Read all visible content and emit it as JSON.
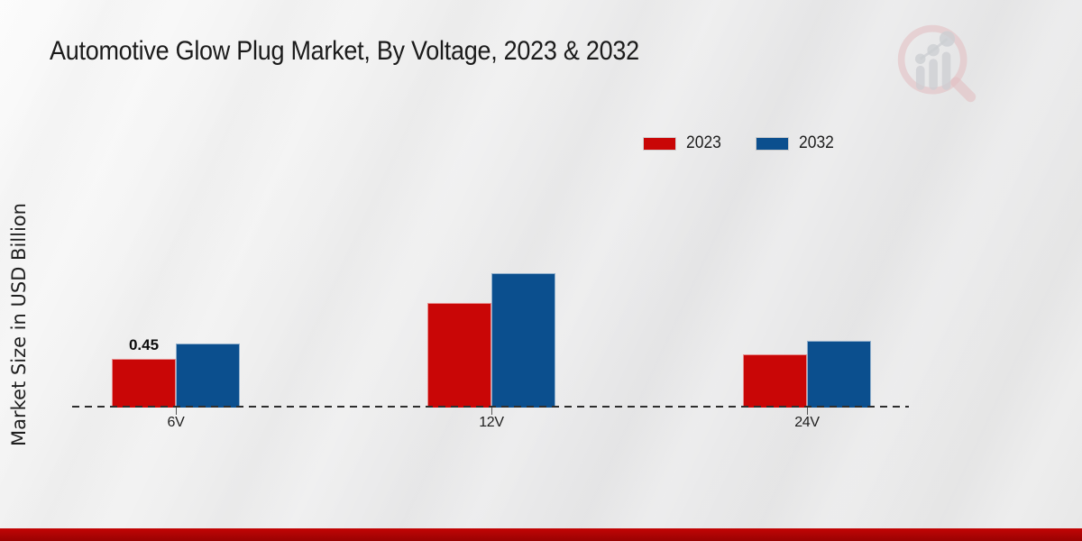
{
  "page": {
    "title": "Automotive Glow Plug Market, By Voltage, 2023 & 2032",
    "ylabel": "Market Size in USD Billion"
  },
  "legend": {
    "items": [
      {
        "label": "2023",
        "color": "#c90606"
      },
      {
        "label": "2032",
        "color": "#0b4f8e"
      }
    ]
  },
  "watermark": {
    "icon": "magnifier-bar-chart-logo"
  },
  "colors": {
    "series_2023": "#c90606",
    "series_2032": "#0b4f8e",
    "footer_stripe": "#b30404",
    "baseline": "#2e2e2e",
    "background": "#e9e9e9"
  },
  "chart_data": {
    "type": "bar",
    "title": "Automotive Glow Plug Market, By Voltage, 2023 & 2032",
    "xlabel": "",
    "ylabel": "Market Size in USD Billion",
    "categories": [
      "6V",
      "12V",
      "24V"
    ],
    "series": [
      {
        "name": "2023",
        "color": "#c90606",
        "values": [
          0.45,
          0.97,
          0.49
        ]
      },
      {
        "name": "2032",
        "color": "#0b4f8e",
        "values": [
          0.59,
          1.24,
          0.62
        ]
      }
    ],
    "ylim": [
      0,
      1.5
    ],
    "grid": false,
    "axis_style": "dashed-baseline-only",
    "legend_position": "top-right",
    "data_labels": [
      {
        "category": "6V",
        "series": "2023",
        "text": "0.45"
      }
    ]
  }
}
